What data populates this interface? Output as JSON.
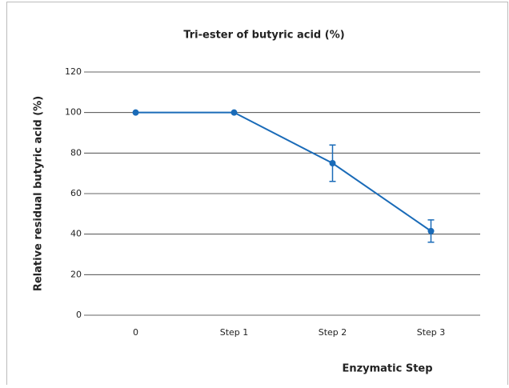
{
  "chart_data": {
    "type": "line",
    "title": "Tri-ester of butyric acid (%)",
    "x_label": "Enzymatic Step",
    "y_label": "Relative residual butyric acid (%)",
    "categories": [
      "0",
      "Step 1",
      "Step 2",
      "Step 3"
    ],
    "values": [
      100,
      100,
      75,
      41.5
    ],
    "errors": [
      null,
      null,
      9,
      5.5
    ],
    "color": "#1a6bb8",
    "ylim": [
      0,
      120
    ],
    "yticks": [
      0,
      20,
      40,
      60,
      80,
      100,
      120
    ],
    "grid": true
  }
}
